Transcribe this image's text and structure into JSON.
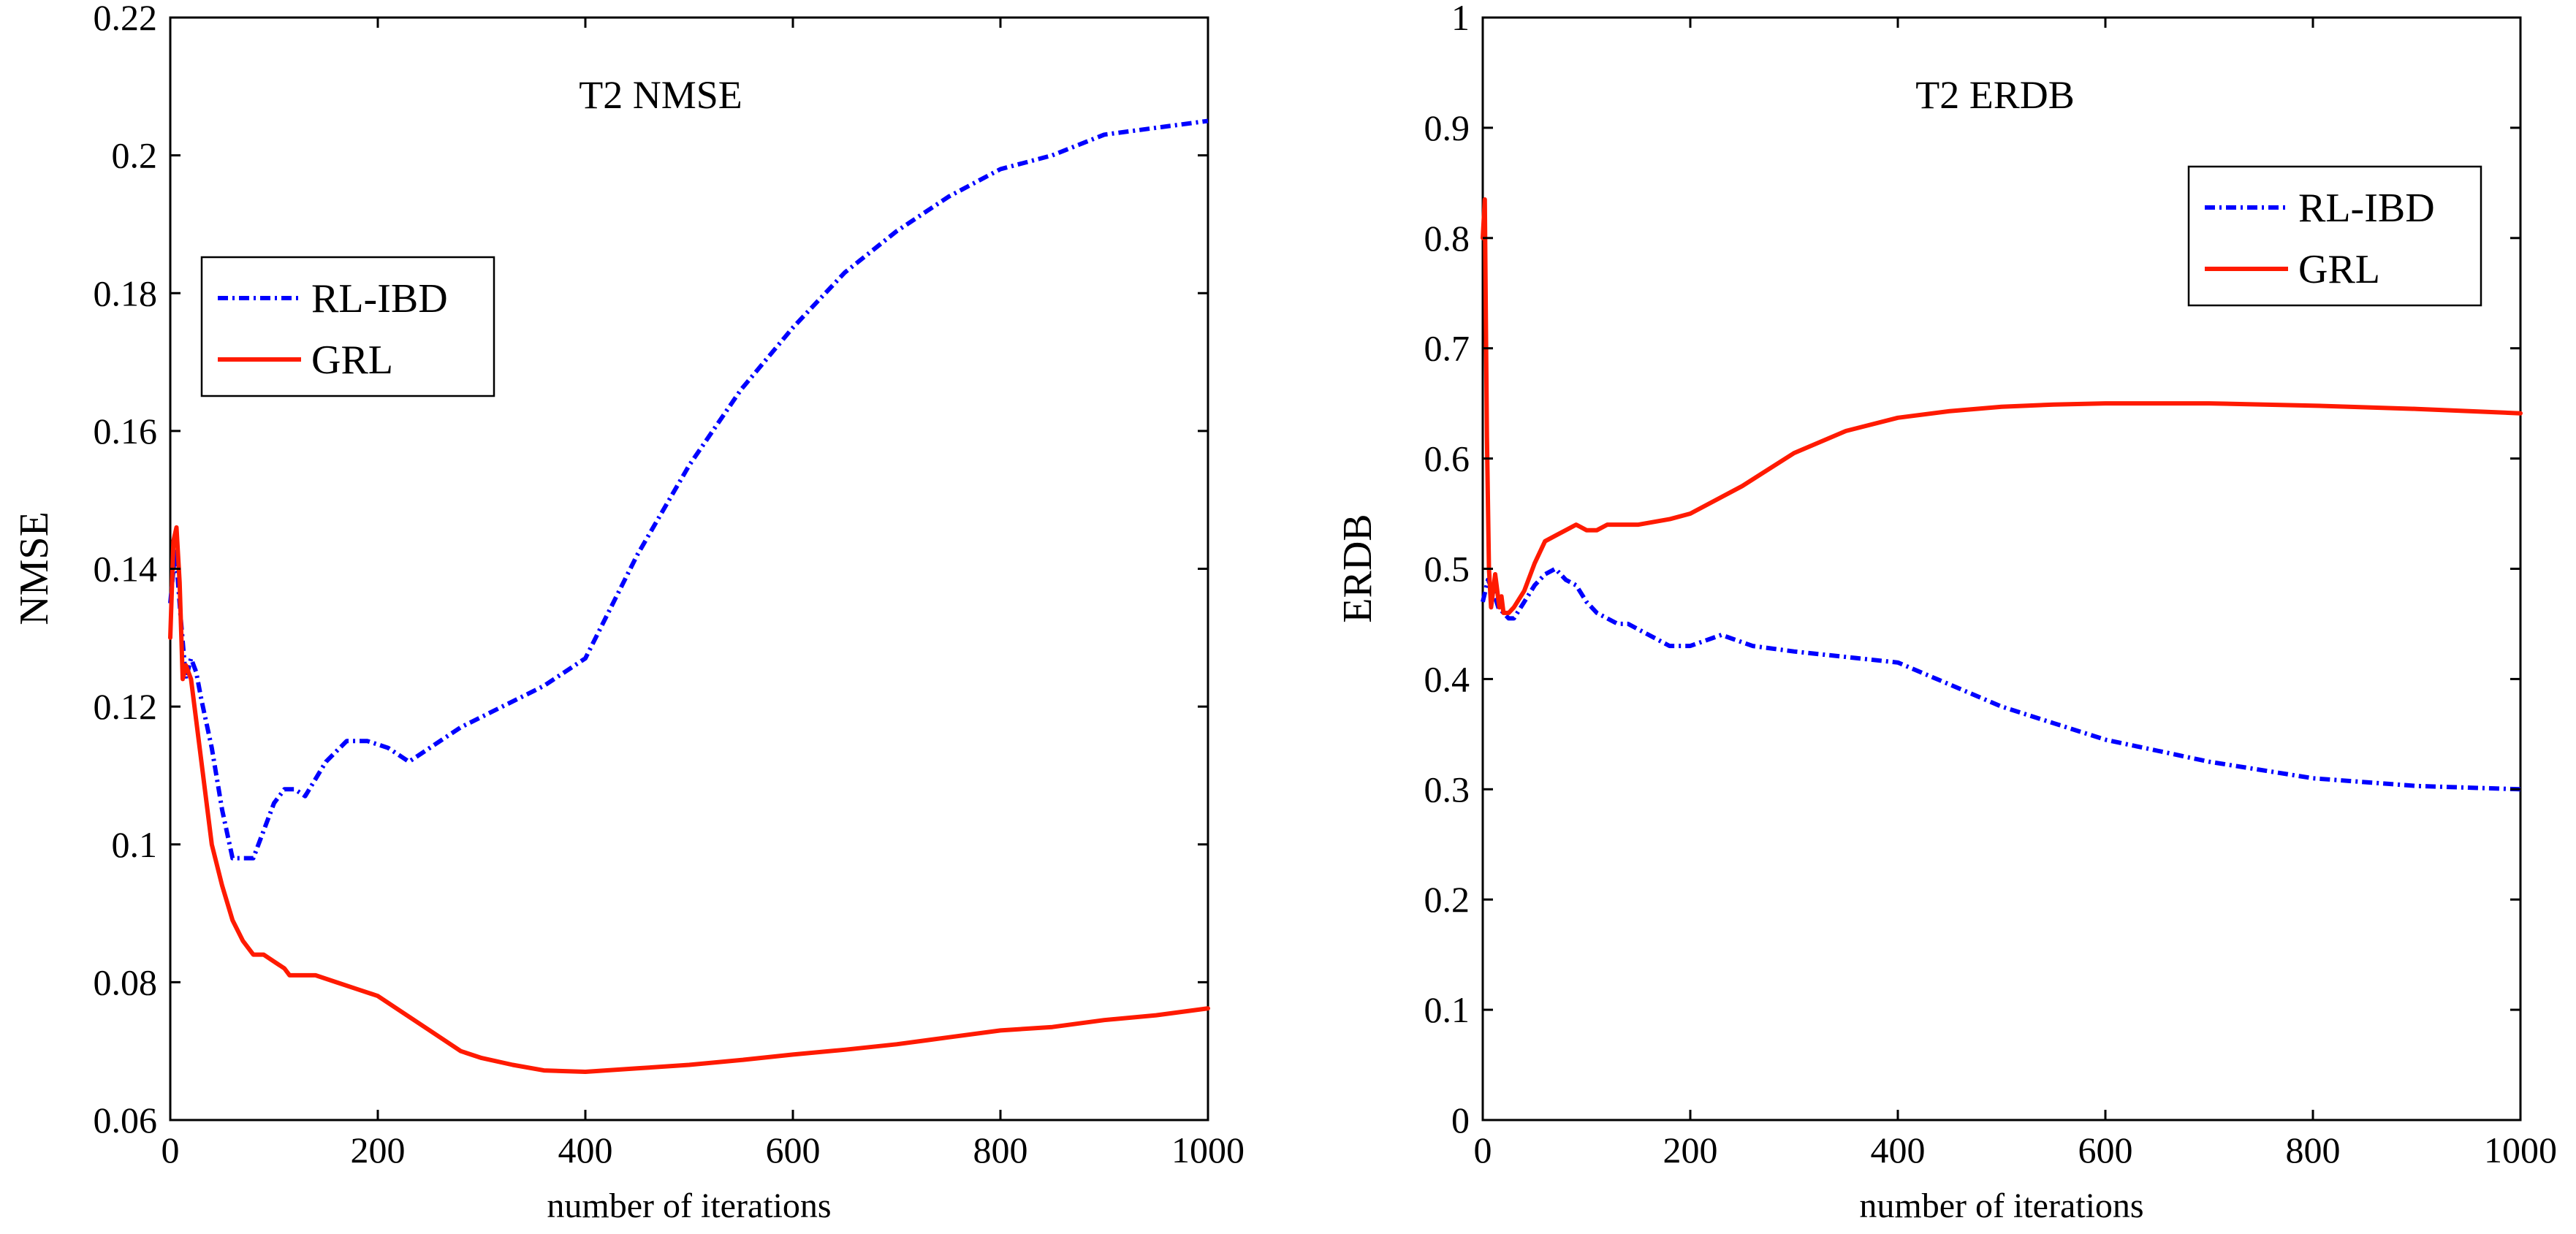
{
  "chart_data": [
    {
      "type": "line",
      "title": "T2 NMSE",
      "xlabel": "number of iterations",
      "ylabel": "NMSE",
      "xlim": [
        0,
        1000
      ],
      "ylim": [
        0.06,
        0.22
      ],
      "xticks": [
        0,
        200,
        400,
        600,
        800,
        1000
      ],
      "xtick_labels": [
        "0",
        "200",
        "400",
        "600",
        "800",
        "1000"
      ],
      "yticks": [
        0.06,
        0.08,
        0.1,
        0.12,
        0.14,
        0.16,
        0.18,
        0.2,
        0.22
      ],
      "ytick_labels": [
        "0.06",
        "0.08",
        "0.1",
        "0.12",
        "0.14",
        "0.16",
        "0.18",
        "0.2",
        "0.22"
      ],
      "grid": false,
      "legend_position": "upper-left",
      "series": [
        {
          "name": "RL-IBD",
          "color": "#0000ff",
          "style": "dash-dot",
          "x": [
            0,
            5,
            10,
            15,
            20,
            25,
            30,
            40,
            50,
            60,
            70,
            80,
            90,
            100,
            110,
            120,
            130,
            150,
            170,
            190,
            210,
            230,
            250,
            280,
            320,
            360,
            400,
            450,
            500,
            550,
            600,
            650,
            700,
            750,
            800,
            850,
            900,
            950,
            1000
          ],
          "y": [
            0.135,
            0.143,
            0.133,
            0.124,
            0.127,
            0.125,
            0.121,
            0.114,
            0.105,
            0.098,
            0.098,
            0.098,
            0.102,
            0.106,
            0.108,
            0.108,
            0.107,
            0.112,
            0.115,
            0.115,
            0.114,
            0.112,
            0.114,
            0.117,
            0.12,
            0.123,
            0.127,
            0.142,
            0.155,
            0.166,
            0.175,
            0.183,
            0.189,
            0.194,
            0.198,
            0.2,
            0.203,
            0.204,
            0.205
          ]
        },
        {
          "name": "GRL",
          "color": "#ff1a00",
          "style": "solid",
          "x": [
            0,
            3,
            6,
            9,
            12,
            15,
            20,
            25,
            30,
            40,
            50,
            60,
            70,
            80,
            90,
            100,
            110,
            115,
            120,
            125,
            140,
            160,
            180,
            200,
            220,
            250,
            280,
            300,
            330,
            360,
            400,
            450,
            500,
            550,
            600,
            650,
            700,
            750,
            800,
            850,
            900,
            950,
            1000
          ],
          "y": [
            0.13,
            0.144,
            0.146,
            0.138,
            0.124,
            0.126,
            0.124,
            0.118,
            0.112,
            0.1,
            0.094,
            0.089,
            0.086,
            0.084,
            0.084,
            0.083,
            0.082,
            0.081,
            0.081,
            0.081,
            0.081,
            0.08,
            0.079,
            0.078,
            0.076,
            0.073,
            0.07,
            0.069,
            0.068,
            0.0672,
            0.067,
            0.0675,
            0.068,
            0.0687,
            0.0695,
            0.0702,
            0.071,
            0.072,
            0.073,
            0.0735,
            0.0745,
            0.0752,
            0.0762
          ]
        }
      ]
    },
    {
      "type": "line",
      "title": "T2 ERDB",
      "xlabel": "number of iterations",
      "ylabel": "ERDB",
      "xlim": [
        0,
        1000
      ],
      "ylim": [
        0,
        1
      ],
      "xticks": [
        0,
        200,
        400,
        600,
        800,
        1000
      ],
      "xtick_labels": [
        "0",
        "200",
        "400",
        "600",
        "800",
        "1000"
      ],
      "yticks": [
        0,
        0.1,
        0.2,
        0.3,
        0.4,
        0.5,
        0.6,
        0.7,
        0.8,
        0.9,
        1
      ],
      "ytick_labels": [
        "0",
        "0.1",
        "0.2",
        "0.3",
        "0.4",
        "0.5",
        "0.6",
        "0.7",
        "0.8",
        "0.9",
        "1"
      ],
      "grid": false,
      "legend_position": "upper-right",
      "series": [
        {
          "name": "RL-IBD",
          "color": "#0000ff",
          "style": "dash-dot",
          "x": [
            0,
            5,
            10,
            15,
            20,
            25,
            30,
            40,
            50,
            60,
            70,
            80,
            90,
            100,
            110,
            120,
            130,
            140,
            160,
            180,
            200,
            230,
            260,
            300,
            350,
            400,
            450,
            500,
            550,
            600,
            650,
            700,
            800,
            900,
            1000
          ],
          "y": [
            0.47,
            0.49,
            0.48,
            0.465,
            0.46,
            0.455,
            0.455,
            0.47,
            0.485,
            0.495,
            0.5,
            0.49,
            0.485,
            0.47,
            0.46,
            0.455,
            0.45,
            0.45,
            0.44,
            0.43,
            0.43,
            0.44,
            0.43,
            0.425,
            0.42,
            0.415,
            0.395,
            0.375,
            0.36,
            0.345,
            0.335,
            0.325,
            0.31,
            0.303,
            0.3
          ]
        },
        {
          "name": "GRL",
          "color": "#ff1a00",
          "style": "solid",
          "x": [
            0,
            2,
            4,
            6,
            8,
            10,
            12,
            14,
            16,
            18,
            20,
            25,
            30,
            40,
            50,
            60,
            70,
            80,
            90,
            100,
            110,
            120,
            130,
            150,
            180,
            200,
            250,
            300,
            350,
            400,
            450,
            500,
            550,
            600,
            650,
            700,
            800,
            900,
            1000
          ],
          "y": [
            0.8,
            0.835,
            0.62,
            0.5,
            0.465,
            0.48,
            0.495,
            0.48,
            0.465,
            0.475,
            0.46,
            0.46,
            0.465,
            0.48,
            0.505,
            0.525,
            0.53,
            0.535,
            0.54,
            0.535,
            0.535,
            0.54,
            0.54,
            0.54,
            0.545,
            0.55,
            0.575,
            0.605,
            0.625,
            0.637,
            0.643,
            0.647,
            0.649,
            0.65,
            0.65,
            0.65,
            0.648,
            0.645,
            0.641
          ]
        }
      ]
    }
  ]
}
